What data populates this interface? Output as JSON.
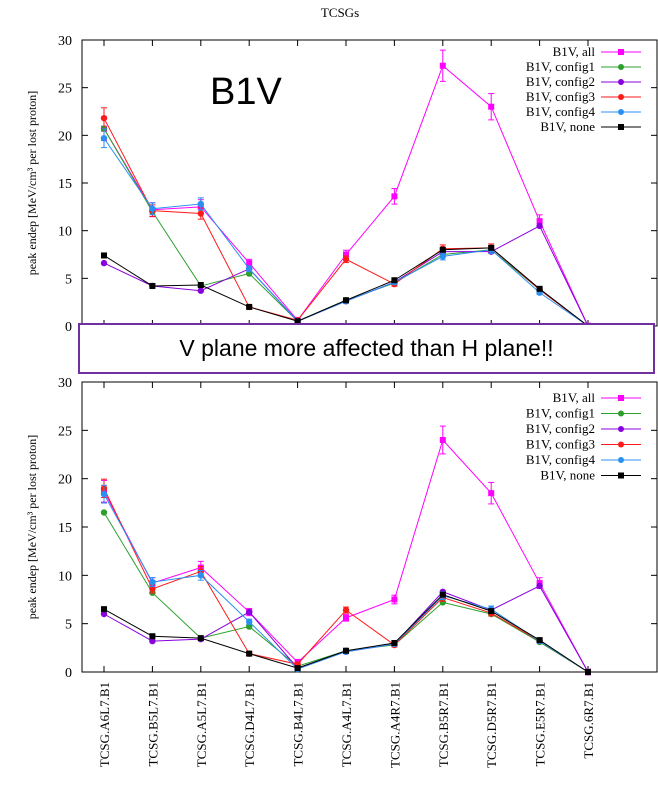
{
  "figure_title": "TCSGs",
  "banner_text": "V plane more affected than H plane!!",
  "colors": {
    "all": "#ff00ff",
    "config1": "#2ca02c",
    "config2": "#8800dd",
    "config3": "#ff1a1a",
    "config4": "#2b8ff0",
    "none": "#000000",
    "banner_border": "#7030a0"
  },
  "chart_data": [
    {
      "type": "line",
      "title": "",
      "annotation": "B1V",
      "xlabel": "",
      "ylabel": "peak endep [MeV/cm³ per lost proton]",
      "ylim": [
        0,
        30
      ],
      "yticks": [
        "0",
        "5",
        "10",
        "15",
        "20",
        "25",
        "30"
      ],
      "grid": false,
      "legend_position": "top-right",
      "categories": [
        "TCSG.A6L7.B1",
        "TCSG.B5L7.B1",
        "TCSG.A5L7.B1",
        "TCSG.D4L7.B1",
        "TCSG.B4L7.B1",
        "TCSG.A4L7.B1",
        "TCSG.A4R7.B1",
        "TCSG.B5R7.B1",
        "TCSG.D5R7.B1",
        "TCSG.E5R7.B1",
        "TCSG.6R7.B1"
      ],
      "series": [
        {
          "name": "B1V, all",
          "key": "all",
          "marker": "square",
          "values": [
            20.7,
            12.2,
            12.5,
            6.6,
            0.6,
            7.5,
            13.6,
            27.3,
            23.0,
            11.0,
            0.0
          ]
        },
        {
          "name": "B1V, config1",
          "key": "config1",
          "marker": "circle",
          "values": [
            20.7,
            12.0,
            4.2,
            5.5,
            0.5,
            2.7,
            4.5,
            7.5,
            8.0,
            3.8,
            0.0
          ]
        },
        {
          "name": "B1V, config2",
          "key": "config2",
          "marker": "circle",
          "values": [
            6.6,
            4.2,
            3.7,
            6.0,
            0.5,
            2.6,
            4.6,
            7.8,
            7.8,
            10.5,
            0.0
          ]
        },
        {
          "name": "B1V, config3",
          "key": "config3",
          "marker": "circle",
          "values": [
            21.8,
            12.1,
            11.8,
            2.0,
            0.6,
            7.0,
            4.4,
            8.1,
            8.2,
            3.8,
            0.0
          ]
        },
        {
          "name": "B1V, config4",
          "key": "config4",
          "marker": "circle",
          "values": [
            19.7,
            12.3,
            12.8,
            6.0,
            0.5,
            2.6,
            4.6,
            7.3,
            8.0,
            3.5,
            0.0
          ]
        },
        {
          "name": "B1V, none",
          "key": "none",
          "marker": "square",
          "values": [
            7.4,
            4.2,
            4.3,
            2.0,
            0.5,
            2.7,
            4.8,
            8.0,
            8.2,
            3.9,
            0.0
          ]
        }
      ]
    },
    {
      "type": "line",
      "title": "",
      "xlabel": "",
      "ylabel": "peak endep [MeV/cm³ per lost proton]",
      "ylim": [
        0,
        30
      ],
      "yticks": [
        "0",
        "5",
        "10",
        "15",
        "20",
        "25",
        "30"
      ],
      "grid": false,
      "legend_position": "top-right",
      "categories": [
        "TCSG.A6L7.B1",
        "TCSG.B5L7.B1",
        "TCSG.A5L7.B1",
        "TCSG.D4L7.B1",
        "TCSG.B4L7.B1",
        "TCSG.A4L7.B1",
        "TCSG.A4R7.B1",
        "TCSG.B5R7.B1",
        "TCSG.D5R7.B1",
        "TCSG.E5R7.B1",
        "TCSG.6R7.B1"
      ],
      "series": [
        {
          "name": "B1V, all",
          "key": "all",
          "marker": "square",
          "values": [
            18.7,
            9.2,
            10.8,
            6.2,
            1.0,
            5.6,
            7.5,
            24.0,
            18.5,
            9.2,
            0.0
          ]
        },
        {
          "name": "B1V, config1",
          "key": "config1",
          "marker": "circle",
          "values": [
            16.5,
            8.2,
            3.5,
            4.7,
            0.6,
            2.2,
            2.8,
            7.2,
            6.0,
            3.1,
            0.0
          ]
        },
        {
          "name": "B1V, config2",
          "key": "config2",
          "marker": "circle",
          "values": [
            6.0,
            3.2,
            3.4,
            6.2,
            0.4,
            2.1,
            2.9,
            8.3,
            6.4,
            8.9,
            0.0
          ]
        },
        {
          "name": "B1V, config3",
          "key": "config3",
          "marker": "circle",
          "values": [
            19.0,
            8.6,
            10.4,
            1.9,
            0.8,
            6.4,
            2.8,
            7.7,
            6.1,
            3.2,
            0.0
          ]
        },
        {
          "name": "B1V, config4",
          "key": "config4",
          "marker": "circle",
          "values": [
            18.4,
            9.3,
            10.0,
            5.2,
            0.3,
            2.1,
            2.9,
            7.9,
            6.5,
            3.2,
            0.0
          ]
        },
        {
          "name": "B1V, none",
          "key": "none",
          "marker": "square",
          "values": [
            6.5,
            3.7,
            3.5,
            1.9,
            0.4,
            2.2,
            3.0,
            8.0,
            6.3,
            3.3,
            0.0
          ]
        }
      ]
    }
  ]
}
